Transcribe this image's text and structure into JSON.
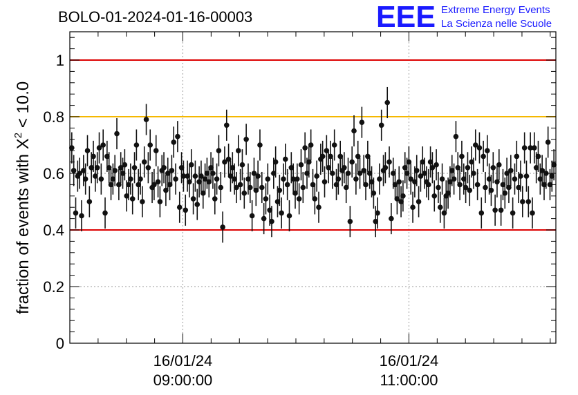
{
  "chart_data": {
    "type": "scatter",
    "title": "BOLO-01-2024-01-16-00003",
    "ylabel_prefix": "fraction of events with",
    "ylabel_symbol": "X",
    "ylabel_exp": "2",
    "ylabel_suffix": "< 10.0",
    "ylim": [
      0,
      1.1
    ],
    "yticks": [
      {
        "value": 0,
        "label": "0"
      },
      {
        "value": 0.2,
        "label": "0.2"
      },
      {
        "value": 0.4,
        "label": "0.4"
      },
      {
        "value": 0.6,
        "label": "0.6"
      },
      {
        "value": 0.8,
        "label": "0.8"
      },
      {
        "value": 1.0,
        "label": "1"
      }
    ],
    "xlim_minutes": [
      0,
      258
    ],
    "xticks": [
      {
        "minute": 60,
        "date": "16/01/24",
        "time": "09:00:00"
      },
      {
        "minute": 180,
        "date": "16/01/24",
        "time": "11:00:00"
      }
    ],
    "grid": true,
    "threshold_lines": [
      {
        "value": 1.0,
        "color": "#dd0000"
      },
      {
        "value": 0.8,
        "color": "#f5b800"
      },
      {
        "value": 0.4,
        "color": "#dd0000"
      }
    ],
    "point_color": "#111111",
    "error": 0.055,
    "y": [
      0.69,
      0.61,
      0.46,
      0.59,
      0.6,
      0.45,
      0.61,
      0.58,
      0.68,
      0.5,
      0.62,
      0.66,
      0.59,
      0.62,
      0.69,
      0.58,
      0.7,
      0.46,
      0.66,
      0.62,
      0.56,
      0.58,
      0.61,
      0.74,
      0.56,
      0.62,
      0.6,
      0.63,
      0.52,
      0.56,
      0.58,
      0.51,
      0.62,
      0.7,
      0.56,
      0.58,
      0.5,
      0.64,
      0.79,
      0.62,
      0.7,
      0.55,
      0.56,
      0.68,
      0.57,
      0.5,
      0.61,
      0.62,
      0.54,
      0.6,
      0.56,
      0.61,
      0.71,
      0.58,
      0.73,
      0.48,
      0.62,
      0.59,
      0.47,
      0.59,
      0.57,
      0.63,
      0.51,
      0.59,
      0.49,
      0.57,
      0.59,
      0.53,
      0.58,
      0.6,
      0.57,
      0.62,
      0.6,
      0.51,
      0.58,
      0.68,
      0.55,
      0.41,
      0.64,
      0.77,
      0.65,
      0.59,
      0.62,
      0.58,
      0.55,
      0.68,
      0.56,
      0.63,
      0.53,
      0.72,
      0.58,
      0.55,
      0.45,
      0.6,
      0.54,
      0.59,
      0.7,
      0.55,
      0.44,
      0.51,
      0.58,
      0.47,
      0.43,
      0.6,
      0.64,
      0.5,
      0.54,
      0.46,
      0.58,
      0.65,
      0.56,
      0.45,
      0.62,
      0.58,
      0.53,
      0.58,
      0.51,
      0.63,
      0.55,
      0.69,
      0.6,
      0.64,
      0.7,
      0.56,
      0.51,
      0.59,
      0.48,
      0.65,
      0.66,
      0.57,
      0.68,
      0.62,
      0.66,
      0.6,
      0.7,
      0.56,
      0.58,
      0.66,
      0.61,
      0.62,
      0.55,
      0.6,
      0.43,
      0.64,
      0.75,
      0.58,
      0.66,
      0.6,
      0.78,
      0.61,
      0.56,
      0.66,
      0.6,
      0.57,
      0.53,
      0.43,
      0.46,
      0.58,
      0.77,
      0.61,
      0.62,
      0.85,
      0.64,
      0.44,
      0.6,
      0.56,
      0.51,
      0.57,
      0.5,
      0.52,
      0.62,
      0.6,
      0.64,
      0.58,
      0.48,
      0.57,
      0.61,
      0.5,
      0.59,
      0.64,
      0.6,
      0.57,
      0.56,
      0.64,
      0.62,
      0.52,
      0.63,
      0.55,
      0.48,
      0.58,
      0.46,
      0.52,
      0.53,
      0.57,
      0.61,
      0.58,
      0.73,
      0.62,
      0.56,
      0.66,
      0.58,
      0.55,
      0.62,
      0.54,
      0.64,
      0.6,
      0.7,
      0.56,
      0.69,
      0.46,
      0.66,
      0.55,
      0.68,
      0.58,
      0.54,
      0.62,
      0.47,
      0.57,
      0.63,
      0.47,
      0.56,
      0.53,
      0.6,
      0.55,
      0.61,
      0.46,
      0.58,
      0.66,
      0.55,
      0.59,
      0.5,
      0.69,
      0.59,
      0.5,
      0.69,
      0.46,
      0.69,
      0.62,
      0.66,
      0.58,
      0.61,
      0.56,
      0.6,
      0.71,
      0.56,
      0.59,
      0.63
    ]
  },
  "logo": {
    "mark": "EEE",
    "line1": "Extreme Energy Events",
    "line2": "La Scienza nelle Scuole",
    "color": "#1a1aff"
  }
}
